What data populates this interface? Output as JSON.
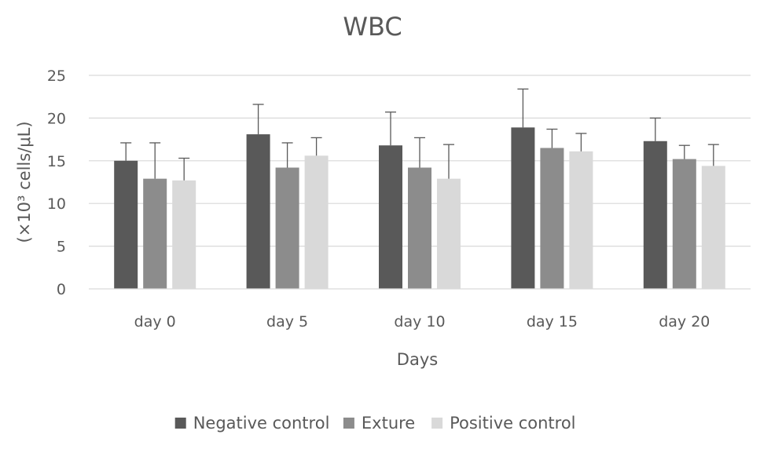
{
  "chart_data": {
    "type": "bar",
    "title": "WBC",
    "xlabel": "Days",
    "ylabel": "(×10³ cells/μL)",
    "categories": [
      "day 0",
      "day 5",
      "day 10",
      "day 15",
      "day 20"
    ],
    "ylim": [
      0,
      25
    ],
    "yticks": [
      0,
      5,
      10,
      15,
      20,
      25
    ],
    "grid": true,
    "legend_position": "bottom",
    "series": [
      {
        "name": "Negative control",
        "color": "#595959",
        "values": [
          15.0,
          18.1,
          16.8,
          18.9,
          17.3
        ],
        "error": [
          2.1,
          3.5,
          3.9,
          4.5,
          2.7
        ]
      },
      {
        "name": "Exture",
        "color": "#8c8c8c",
        "values": [
          12.9,
          14.2,
          14.2,
          16.5,
          15.2
        ],
        "error": [
          4.2,
          2.9,
          3.5,
          2.2,
          1.6
        ]
      },
      {
        "name": "Positive control",
        "color": "#d9d9d9",
        "values": [
          12.7,
          15.6,
          12.9,
          16.1,
          14.4
        ],
        "error": [
          2.6,
          2.1,
          4.0,
          2.1,
          2.5
        ]
      }
    ]
  }
}
